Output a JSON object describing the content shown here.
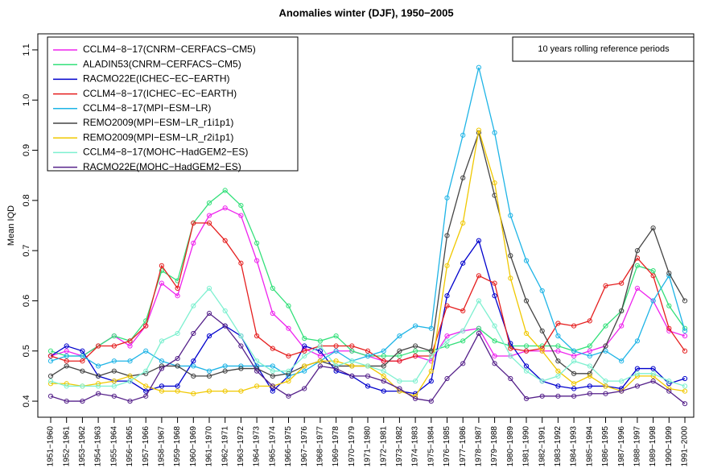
{
  "chart_data": {
    "type": "line",
    "title": "Anomalies winter (DJF), 1950−2005",
    "y_label": "Mean IQD",
    "annotation": "10 years rolling reference periods",
    "categories": [
      "1951−1960",
      "1952−1961",
      "1953−1962",
      "1954−1963",
      "1955−1964",
      "1956−1965",
      "1957−1966",
      "1958−1967",
      "1959−1968",
      "1960−1969",
      "1961−1970",
      "1962−1971",
      "1963−1972",
      "1964−1973",
      "1965−1974",
      "1966−1975",
      "1967−1976",
      "1968−1977",
      "1969−1978",
      "1970−1979",
      "1971−1980",
      "1972−1981",
      "1973−1982",
      "1974−1983",
      "1975−1984",
      "1976−1985",
      "1977−1986",
      "1978−1987",
      "1979−1988",
      "1980−1989",
      "1981−1990",
      "1982−1991",
      "1983−1992",
      "1984−1993",
      "1985−1994",
      "1986−1995",
      "1987−1996",
      "1988−1997",
      "1989−1998",
      "1990−1999",
      "1991−2000"
    ],
    "ylim": [
      0.368,
      1.132
    ],
    "yticks": [
      0.4,
      0.5,
      0.6,
      0.7,
      0.8,
      0.9,
      {
        "value": 1,
        "label": "1.0"
      },
      1.1
    ],
    "series": [
      {
        "name": "CCLM4−8−17(CNRM−CERFACS−CM5)",
        "color": "#ee22ee",
        "values": [
          0.49,
          0.5,
          0.49,
          0.51,
          0.53,
          0.51,
          0.55,
          0.635,
          0.61,
          0.715,
          0.77,
          0.785,
          0.77,
          0.68,
          0.575,
          0.545,
          0.505,
          0.49,
          0.5,
          0.5,
          0.49,
          0.48,
          0.48,
          0.49,
          0.48,
          0.53,
          0.54,
          0.545,
          0.49,
          0.49,
          0.5,
          0.5,
          0.5,
          0.49,
          0.5,
          0.51,
          0.55,
          0.625,
          0.6,
          0.54,
          0.53
        ]
      },
      {
        "name": "ALADIN53(CNRM−CERFACS−CM5)",
        "color": "#33e07a",
        "values": [
          0.5,
          0.49,
          0.49,
          0.51,
          0.53,
          0.52,
          0.56,
          0.66,
          0.64,
          0.755,
          0.795,
          0.82,
          0.79,
          0.715,
          0.625,
          0.59,
          0.525,
          0.52,
          0.53,
          0.5,
          0.49,
          0.49,
          0.49,
          0.5,
          0.5,
          0.51,
          0.52,
          0.545,
          0.52,
          0.51,
          0.51,
          0.51,
          0.51,
          0.5,
          0.51,
          0.55,
          0.58,
          0.67,
          0.66,
          0.59,
          0.545
        ]
      },
      {
        "name": "RACMO22E(ICHEC−EC−EARTH)",
        "color": "#0000cc",
        "values": [
          0.49,
          0.51,
          0.5,
          0.45,
          0.44,
          0.44,
          0.42,
          0.43,
          0.43,
          0.48,
          0.53,
          0.55,
          0.53,
          0.47,
          0.42,
          0.45,
          0.51,
          0.5,
          0.46,
          0.45,
          0.43,
          0.42,
          0.42,
          0.415,
          0.44,
          0.61,
          0.675,
          0.72,
          0.61,
          0.515,
          0.47,
          0.44,
          0.43,
          0.425,
          0.43,
          0.43,
          0.425,
          0.465,
          0.465,
          0.435,
          0.445
        ]
      },
      {
        "name": "CCLM4−8−17(ICHEC−EC−EARTH)",
        "color": "#e51e1e",
        "values": [
          0.49,
          0.48,
          0.48,
          0.51,
          0.51,
          0.52,
          0.55,
          0.67,
          0.625,
          0.755,
          0.755,
          0.72,
          0.675,
          0.53,
          0.505,
          0.49,
          0.5,
          0.51,
          0.51,
          0.51,
          0.5,
          0.48,
          0.48,
          0.49,
          0.49,
          0.59,
          0.58,
          0.65,
          0.635,
          0.505,
          0.5,
          0.505,
          0.555,
          0.55,
          0.56,
          0.63,
          0.635,
          0.685,
          0.65,
          0.545,
          0.5
        ]
      },
      {
        "name": "CCLM4−8−17(MPI−ESM−LR)",
        "color": "#1eb4e6",
        "values": [
          0.48,
          0.49,
          0.49,
          0.47,
          0.48,
          0.48,
          0.5,
          0.48,
          0.47,
          0.47,
          0.46,
          0.47,
          0.47,
          0.47,
          0.47,
          0.45,
          0.46,
          0.48,
          0.5,
          0.48,
          0.49,
          0.5,
          0.53,
          0.55,
          0.545,
          0.805,
          0.93,
          1.065,
          0.935,
          0.77,
          0.68,
          0.62,
          0.53,
          0.5,
          0.49,
          0.5,
          0.48,
          0.52,
          0.6,
          0.65,
          0.54
        ]
      },
      {
        "name": "REMO2009(MPI−ESM−LR_r1i1p1)",
        "color": "#444444",
        "values": [
          0.45,
          0.47,
          0.46,
          0.45,
          0.46,
          0.45,
          0.455,
          0.47,
          0.47,
          0.45,
          0.45,
          0.46,
          0.465,
          0.465,
          0.45,
          0.455,
          0.47,
          0.48,
          0.47,
          0.47,
          0.47,
          0.47,
          0.5,
          0.51,
          0.5,
          0.73,
          0.845,
          0.935,
          0.81,
          0.69,
          0.6,
          0.54,
          0.48,
          0.455,
          0.455,
          0.51,
          0.58,
          0.7,
          0.745,
          0.655,
          0.6
        ]
      },
      {
        "name": "REMO2009(MPI−ESM−LR_r2i1p1)",
        "color": "#f0c800",
        "values": [
          0.435,
          0.435,
          0.43,
          0.435,
          0.44,
          0.45,
          0.43,
          0.42,
          0.42,
          0.415,
          0.42,
          0.42,
          0.42,
          0.43,
          0.43,
          0.44,
          0.47,
          0.48,
          0.48,
          0.47,
          0.47,
          0.45,
          0.42,
          0.41,
          0.46,
          0.67,
          0.755,
          0.94,
          0.835,
          0.645,
          0.535,
          0.5,
          0.46,
          0.435,
          0.45,
          0.43,
          0.42,
          0.45,
          0.45,
          0.425,
          0.42
        ]
      },
      {
        "name": "CCLM4−8−17(MOHC−HadGEM2−ES)",
        "color": "#7ef0d0",
        "values": [
          0.44,
          0.43,
          0.43,
          0.43,
          0.43,
          0.44,
          0.46,
          0.52,
          0.535,
          0.59,
          0.625,
          0.58,
          0.53,
          0.48,
          0.46,
          0.46,
          0.49,
          0.51,
          0.47,
          0.48,
          0.47,
          0.46,
          0.44,
          0.44,
          0.49,
          0.52,
          0.54,
          0.6,
          0.55,
          0.49,
          0.46,
          0.44,
          0.45,
          0.48,
          0.47,
          0.44,
          0.44,
          0.455,
          0.455,
          0.44,
          0.43
        ]
      },
      {
        "name": "RACMO22E(MOHC−HadGEM2−ES)",
        "color": "#55218a",
        "values": [
          0.41,
          0.4,
          0.4,
          0.415,
          0.41,
          0.4,
          0.41,
          0.465,
          0.485,
          0.535,
          0.575,
          0.55,
          0.51,
          0.46,
          0.43,
          0.41,
          0.425,
          0.47,
          0.465,
          0.45,
          0.45,
          0.44,
          0.425,
          0.405,
          0.4,
          0.445,
          0.475,
          0.535,
          0.475,
          0.445,
          0.405,
          0.41,
          0.41,
          0.41,
          0.415,
          0.415,
          0.42,
          0.43,
          0.44,
          0.42,
          0.395
        ]
      }
    ]
  }
}
